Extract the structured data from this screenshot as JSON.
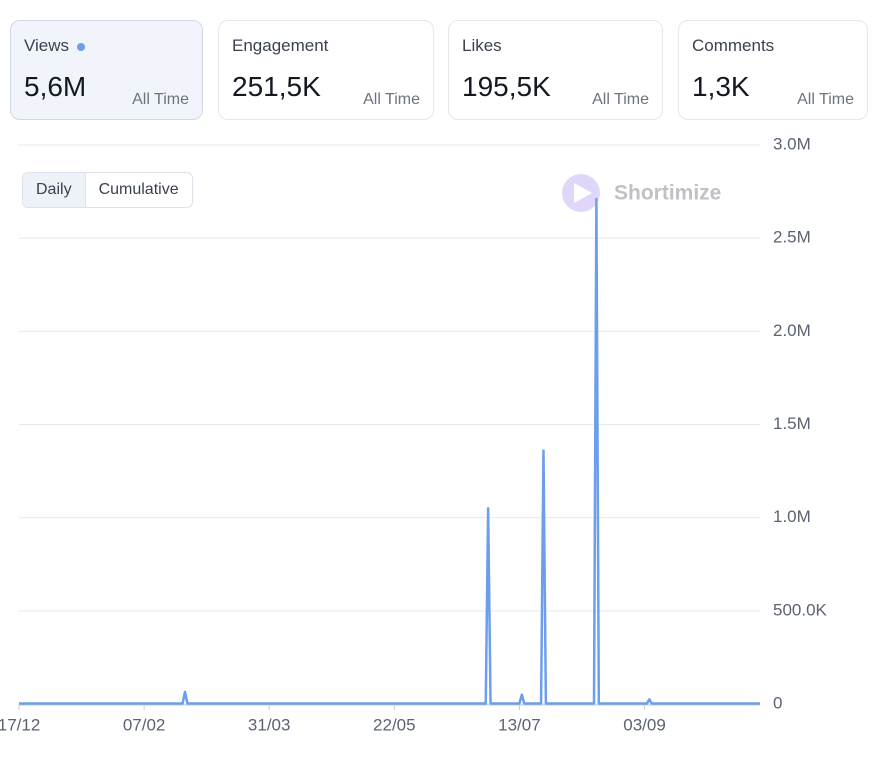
{
  "cards": [
    {
      "label": "Views",
      "value": "5,6M",
      "period": "All Time"
    },
    {
      "label": "Engagement",
      "value": "251,5K",
      "period": "All Time"
    },
    {
      "label": "Likes",
      "value": "195,5K",
      "period": "All Time"
    },
    {
      "label": "Comments",
      "value": "1,3K",
      "period": "All Time"
    }
  ],
  "toggle": [
    "Daily",
    "Cumulative"
  ],
  "watermark": "Shortimize",
  "chart_data": {
    "type": "line",
    "x": [
      "17/12",
      "23/02",
      "24/02",
      "25/02",
      "29/06",
      "30/06",
      "01/07",
      "13/07",
      "14/07",
      "15/07",
      "22/07",
      "23/07",
      "24/07",
      "13/08",
      "14/08",
      "15/08",
      "04/09",
      "05/09",
      "06/09",
      "21/10"
    ],
    "series": [
      {
        "name": "Views",
        "color": "#6d9eeb",
        "values": [
          3000,
          3000,
          65000,
          3000,
          3000,
          1050000,
          3000,
          3000,
          50000,
          3000,
          3000,
          1360000,
          3000,
          3000,
          2710000,
          3000,
          3000,
          25000,
          3000,
          3000
        ]
      }
    ],
    "xticks": [
      "17/12",
      "07/02",
      "31/03",
      "22/05",
      "13/07",
      "03/09"
    ],
    "xlim": [
      "17/12",
      "21/10"
    ],
    "ylim": [
      0,
      3000000
    ],
    "yticks": [
      0,
      {
        "value": 500000,
        "label": "500.0K"
      },
      {
        "value": 1000000,
        "label": "1.0M"
      },
      {
        "value": 1500000,
        "label": "1.5M"
      },
      {
        "value": 2000000,
        "label": "2.0M"
      },
      {
        "value": 2500000,
        "label": "2.5M"
      },
      {
        "value": 3000000,
        "label": "3.0M"
      }
    ],
    "grid": true
  }
}
